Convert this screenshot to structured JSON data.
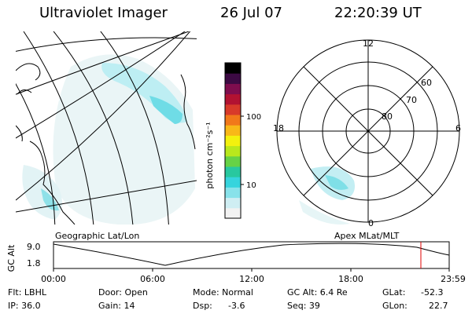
{
  "header": {
    "instrument": "Ultraviolet Imager",
    "date": "26 Jul 07",
    "time": "22:20:39 UT"
  },
  "colorbar": {
    "unit_label": "photon cm⁻²s⁻¹",
    "ticks": [
      "100",
      "10"
    ],
    "colors": [
      "#f2f2f2",
      "#cfeef3",
      "#88e2ea",
      "#36d4dd",
      "#28c89f",
      "#66d246",
      "#b9e81c",
      "#f3f10e",
      "#f8b818",
      "#f1781a",
      "#d83a2a",
      "#b21232",
      "#7f0d4e",
      "#3c0a43",
      "#000000"
    ]
  },
  "left_panel": {
    "caption": "Geographic Lat/Lon"
  },
  "right_panel": {
    "caption": "Apex MLat/MLT",
    "mlt_labels": {
      "top": "12",
      "left": "18",
      "right": "6",
      "bottom": "0"
    },
    "lat_labels": [
      "60",
      "70",
      "80"
    ]
  },
  "timeline": {
    "ylabel": "GC Alt",
    "yticks": [
      "9.0",
      "1.8"
    ],
    "xticks": [
      "00:00",
      "06:00",
      "12:00",
      "18:00",
      "23:59"
    ],
    "marker_color": "#e00000"
  },
  "info": {
    "filter": "Flt: LBHL",
    "ip": "IP: 36.0",
    "door": "Door: Open",
    "gain": "Gain: 14",
    "mode": "Mode: Normal",
    "dsp_label": "Dsp:",
    "dsp_value": "-3.6",
    "gc_alt": "GC Alt: 6.4 Re",
    "seq": "Seq: 39",
    "glat_label": "GLat:",
    "glat_value": "-52.3",
    "glon_label": "GLon:",
    "glon_value": "22.7"
  }
}
